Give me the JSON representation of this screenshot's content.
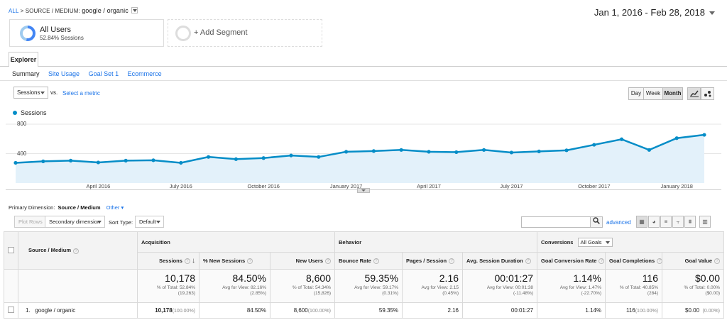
{
  "header": {
    "breadcrumb_all": "ALL",
    "breadcrumb_sep": ">",
    "breadcrumb_dim": "SOURCE / MEDIUM:",
    "breadcrumb_value": "google / organic",
    "date_range": "Jan 1, 2016 - Feb 28, 2018"
  },
  "segments": {
    "active": {
      "title": "All Users",
      "subtitle": "52.84% Sessions",
      "share": 52.84
    },
    "add_label": "+ Add Segment"
  },
  "tabs": {
    "explorer": "Explorer",
    "sub": [
      "Summary",
      "Site Usage",
      "Goal Set 1",
      "Ecommerce"
    ]
  },
  "chart_controls": {
    "metric": "Sessions",
    "vs": "vs.",
    "select_metric": "Select a metric",
    "day": "Day",
    "week": "Week",
    "month": "Month"
  },
  "chart_data": {
    "type": "line",
    "series": [
      {
        "name": "Sessions",
        "values": [
          275,
          295,
          305,
          280,
          305,
          310,
          275,
          355,
          325,
          340,
          375,
          355,
          425,
          435,
          450,
          425,
          420,
          450,
          415,
          430,
          445,
          520,
          595,
          450,
          610,
          655
        ]
      }
    ],
    "x": [
      "2016-01",
      "2016-02",
      "2016-03",
      "2016-04",
      "2016-05",
      "2016-06",
      "2016-07",
      "2016-08",
      "2016-09",
      "2016-10",
      "2016-11",
      "2016-12",
      "2017-01",
      "2017-02",
      "2017-03",
      "2017-04",
      "2017-05",
      "2017-06",
      "2017-07",
      "2017-08",
      "2017-09",
      "2017-10",
      "2017-11",
      "2017-12",
      "2018-01",
      "2018-02"
    ],
    "x_tick_labels": [
      "April 2016",
      "July 2016",
      "October 2016",
      "January 2017",
      "April 2017",
      "July 2017",
      "October 2017",
      "January 2018"
    ],
    "x_tick_index": [
      3,
      6,
      9,
      12,
      15,
      18,
      21,
      24
    ],
    "y_ticks": [
      "800",
      "400"
    ],
    "ylim": [
      0,
      800
    ],
    "grid": true,
    "legend": "top-left",
    "color": "#058dc7",
    "fill": "#e3f1fa"
  },
  "dimension_bar": {
    "primary_label": "Primary Dimension:",
    "primary_value": "Source / Medium",
    "other": "Other"
  },
  "table_controls": {
    "plot_rows": "Plot Rows",
    "secondary_dimension": "Secondary dimension",
    "sort_type_label": "Sort Type:",
    "sort_type": "Default",
    "advanced": "advanced"
  },
  "table": {
    "dim_header": "Source / Medium",
    "groups": {
      "acquisition": "Acquisition",
      "behavior": "Behavior",
      "conversions": "Conversions",
      "goals": "All Goals"
    },
    "columns": [
      "Sessions",
      "% New Sessions",
      "New Users",
      "Bounce Rate",
      "Pages / Session",
      "Avg. Session Duration",
      "Goal Conversion Rate",
      "Goal Completions",
      "Goal Value"
    ],
    "totals": [
      {
        "value": "10,178",
        "l1": "% of Total: 52.84%",
        "l2": "(19,263)"
      },
      {
        "value": "84.50%",
        "l1": "Avg for View: 82.16%",
        "l2": "(2.85%)"
      },
      {
        "value": "8,600",
        "l1": "% of Total: 54.34%",
        "l2": "(15,826)"
      },
      {
        "value": "59.35%",
        "l1": "Avg for View: 59.17%",
        "l2": "(0.31%)"
      },
      {
        "value": "2.16",
        "l1": "Avg for View: 2.15",
        "l2": "(0.45%)"
      },
      {
        "value": "00:01:27",
        "l1": "Avg for View: 00:01:38",
        "l2": "(-11.48%)"
      },
      {
        "value": "1.14%",
        "l1": "Avg for View: 1.47%",
        "l2": "(-22.70%)"
      },
      {
        "value": "116",
        "l1": "% of Total: 40.85%",
        "l2": "(284)"
      },
      {
        "value": "$0.00",
        "l1": "% of Total: 0.00%",
        "l2": "($0.00)"
      }
    ],
    "row": {
      "index": "1.",
      "name": "google / organic",
      "sessions": "10,178",
      "sessions_pct": "(100.00%)",
      "new_sessions": "84.50%",
      "new_users": "8,600",
      "new_users_pct": "(100.00%)",
      "bounce": "59.35%",
      "pages": "2.16",
      "duration": "00:01:27",
      "conv_rate": "1.14%",
      "completions": "116",
      "completions_pct": "(100.00%)",
      "value": "$0.00",
      "value_pct": "(0.00%)"
    }
  }
}
